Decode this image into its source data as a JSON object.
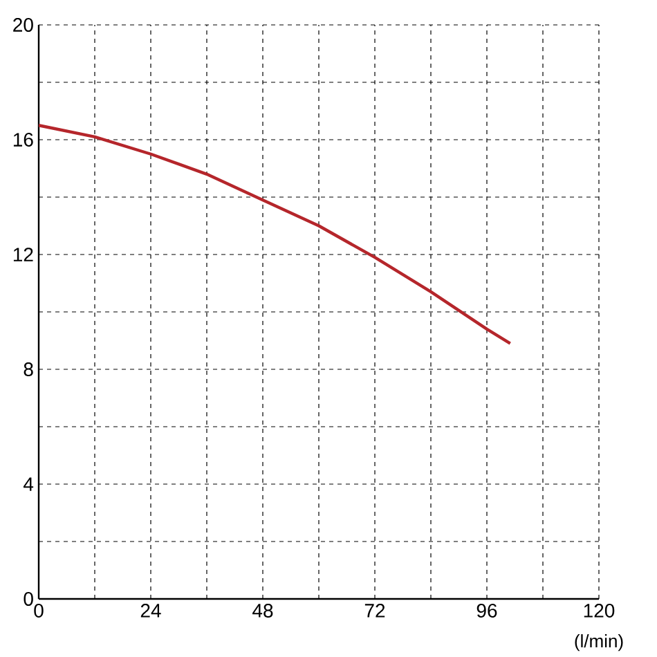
{
  "chart_data": {
    "type": "line",
    "xlabel": "(l/min)",
    "x": [
      0,
      12,
      24,
      36,
      48,
      60,
      72,
      84,
      96,
      101
    ],
    "series": [
      {
        "color": "#b5262b",
        "values": [
          16.5,
          16.1,
          15.5,
          14.8,
          13.9,
          13.0,
          11.9,
          10.7,
          9.4,
          8.9
        ]
      }
    ],
    "xlim": [
      0,
      120
    ],
    "ylim": [
      0,
      20
    ],
    "xticks": [
      0,
      {
        "value": 12,
        "label": null
      },
      24,
      {
        "value": 36,
        "label": null
      },
      48,
      {
        "value": 60,
        "label": null
      },
      72,
      {
        "value": 84,
        "label": null
      },
      96,
      {
        "value": 108,
        "label": null
      },
      120
    ],
    "yticks": [
      0,
      {
        "value": 2,
        "label": null
      },
      4,
      {
        "value": 6,
        "label": null
      },
      8,
      {
        "value": 10,
        "label": null
      },
      12,
      {
        "value": 14,
        "label": null
      },
      16,
      {
        "value": 18,
        "label": null
      },
      20
    ],
    "grid": true,
    "line_style": "solid"
  }
}
